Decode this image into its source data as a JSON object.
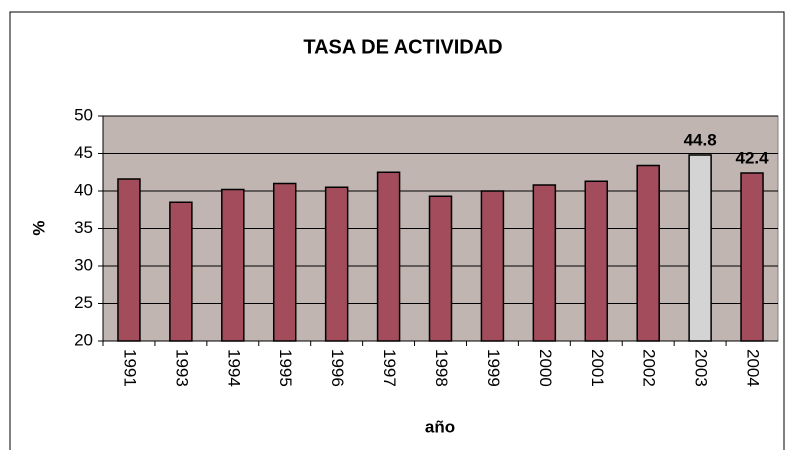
{
  "chart_data": {
    "type": "bar",
    "title": "TASA DE ACTIVIDAD",
    "xlabel": "año",
    "ylabel": "%",
    "categories": [
      "1991",
      "1993",
      "1994",
      "1995",
      "1996",
      "1997",
      "1998",
      "1999",
      "2000",
      "2001",
      "2002",
      "2003",
      "2004"
    ],
    "values": [
      41.6,
      38.5,
      40.2,
      41.0,
      40.5,
      42.5,
      39.3,
      40.0,
      40.8,
      41.3,
      43.4,
      44.8,
      42.4
    ],
    "value_labels": [
      null,
      null,
      null,
      null,
      null,
      null,
      null,
      null,
      null,
      null,
      null,
      "44.8",
      "42.4"
    ],
    "colors": [
      "#a34d5c",
      "#a34d5c",
      "#a34d5c",
      "#a34d5c",
      "#a34d5c",
      "#a34d5c",
      "#a34d5c",
      "#a34d5c",
      "#a34d5c",
      "#a34d5c",
      "#a34d5c",
      "#d4d4d4",
      "#a34d5c"
    ],
    "plot_background": "#c0b5b1",
    "ylim": [
      20,
      50
    ],
    "yticks": [
      20,
      25,
      30,
      35,
      40,
      45,
      50
    ],
    "grid": true
  }
}
